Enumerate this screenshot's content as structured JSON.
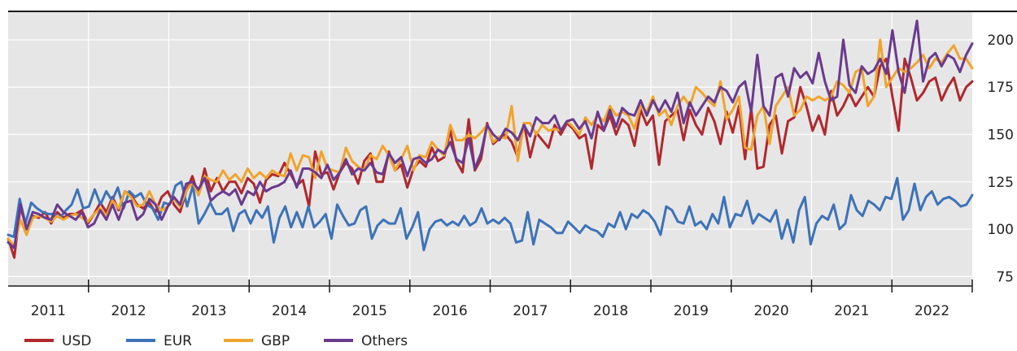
{
  "chart_data": {
    "type": "line",
    "title": "",
    "xlabel": "",
    "ylabel": "",
    "x_start": "2011-01",
    "x_frequency": "monthly",
    "years": [
      "2011",
      "2012",
      "2013",
      "2014",
      "2015",
      "2016",
      "2017",
      "2018",
      "2019",
      "2020",
      "2021",
      "2022"
    ],
    "ylim": [
      70,
      215
    ],
    "yticks": [
      75,
      100,
      125,
      150,
      175,
      200
    ],
    "grid": true,
    "legend_position": "bottom-left",
    "series": [
      {
        "name": "USD",
        "color": "#b0282e",
        "values": [
          95,
          85,
          112,
          100,
          107,
          106,
          109,
          103,
          109,
          106,
          108,
          108,
          110,
          103,
          108,
          114,
          109,
          117,
          110,
          120,
          118,
          113,
          111,
          114,
          109,
          117,
          120,
          113,
          109,
          120,
          128,
          118,
          132,
          120,
          127,
          120,
          125,
          125,
          119,
          127,
          124,
          114,
          126,
          129,
          128,
          135,
          129,
          123,
          126,
          112,
          141,
          129,
          130,
          121,
          130,
          135,
          132,
          124,
          136,
          140,
          125,
          125,
          141,
          131,
          134,
          122,
          132,
          136,
          133,
          143,
          136,
          138,
          152,
          136,
          130,
          158,
          131,
          137,
          156,
          145,
          148,
          150,
          146,
          138,
          156,
          138,
          151,
          147,
          143,
          155,
          150,
          156,
          153,
          148,
          150,
          132,
          155,
          152,
          160,
          150,
          158,
          155,
          144,
          163,
          155,
          160,
          134,
          157,
          160,
          163,
          147,
          163,
          155,
          150,
          164,
          157,
          145,
          162,
          151,
          165,
          137,
          164,
          132,
          133,
          155,
          160,
          140,
          157,
          159,
          175,
          165,
          152,
          160,
          150,
          173,
          160,
          165,
          172,
          165,
          170,
          175,
          170,
          186,
          190,
          170,
          152,
          190,
          180,
          168,
          172,
          178,
          180,
          168,
          175,
          180,
          168,
          175,
          178
        ]
      },
      {
        "name": "EUR",
        "color": "#3d72b8",
        "values": [
          97,
          96,
          116,
          103,
          114,
          111,
          109,
          108,
          108,
          106,
          110,
          113,
          121,
          111,
          112,
          121,
          113,
          120,
          115,
          122,
          111,
          120,
          117,
          119,
          113,
          111,
          105,
          114,
          113,
          123,
          125,
          112,
          123,
          103,
          108,
          114,
          108,
          108,
          111,
          99,
          108,
          110,
          103,
          110,
          106,
          112,
          93,
          106,
          112,
          101,
          109,
          101,
          112,
          101,
          104,
          108,
          95,
          113,
          107,
          102,
          103,
          110,
          112,
          95,
          102,
          105,
          103,
          103,
          111,
          95,
          101,
          109,
          89,
          100,
          104,
          105,
          102,
          104,
          102,
          107,
          102,
          104,
          111,
          103,
          105,
          103,
          106,
          103,
          93,
          94,
          109,
          92,
          105,
          103,
          101,
          98,
          98,
          104,
          101,
          98,
          102,
          100,
          99,
          96,
          103,
          101,
          109,
          100,
          108,
          106,
          110,
          108,
          104,
          97,
          112,
          110,
          104,
          103,
          112,
          102,
          104,
          100,
          108,
          103,
          117,
          101,
          108,
          107,
          115,
          103,
          108,
          106,
          104,
          110,
          95,
          105,
          93,
          110,
          117,
          92,
          103,
          107,
          105,
          113,
          100,
          103,
          118,
          110,
          107,
          115,
          113,
          110,
          117,
          116,
          127,
          105,
          110,
          124,
          110,
          117,
          120,
          113,
          116,
          117,
          115,
          112,
          113,
          118
        ]
      },
      {
        "name": "GBP",
        "color": "#f0a42c",
        "values": [
          95,
          91,
          105,
          97,
          106,
          107,
          106,
          104,
          107,
          105,
          107,
          108,
          106,
          104,
          108,
          111,
          107,
          115,
          111,
          120,
          117,
          112,
          113,
          120,
          113,
          110,
          112,
          116,
          112,
          120,
          125,
          118,
          128,
          126,
          125,
          131,
          126,
          129,
          125,
          132,
          127,
          130,
          127,
          131,
          129,
          128,
          140,
          131,
          139,
          138,
          127,
          141,
          132,
          131,
          130,
          143,
          136,
          133,
          131,
          139,
          137,
          144,
          139,
          131,
          137,
          144,
          131,
          139,
          138,
          146,
          142,
          139,
          155,
          147,
          147,
          150,
          148,
          151,
          155,
          146,
          149,
          148,
          165,
          136,
          156,
          156,
          150,
          155,
          152,
          153,
          152,
          157,
          154,
          150,
          159,
          155,
          160,
          157,
          165,
          160,
          162,
          160,
          153,
          165,
          162,
          170,
          160,
          163,
          155,
          165,
          170,
          165,
          175,
          172,
          168,
          165,
          178,
          158,
          163,
          170,
          143,
          142,
          160,
          165,
          145,
          165,
          170,
          175,
          160,
          163,
          170,
          168,
          170,
          168,
          170,
          178,
          176,
          172,
          183,
          185,
          165,
          170,
          200,
          175,
          180,
          185,
          183,
          185,
          188,
          192,
          185,
          190,
          188,
          193,
          197,
          190,
          190,
          185
        ]
      },
      {
        "name": "Others",
        "color": "#6a3a8e",
        "values": [
          93,
          90,
          113,
          100,
          109,
          108,
          106,
          105,
          113,
          109,
          107,
          105,
          109,
          101,
          103,
          110,
          105,
          113,
          105,
          114,
          115,
          105,
          108,
          116,
          113,
          105,
          112,
          117,
          113,
          124,
          125,
          121,
          127,
          115,
          118,
          120,
          118,
          121,
          113,
          120,
          118,
          125,
          120,
          122,
          123,
          125,
          131,
          122,
          132,
          132,
          130,
          127,
          134,
          126,
          130,
          137,
          129,
          132,
          131,
          135,
          130,
          129,
          140,
          135,
          138,
          128,
          137,
          138,
          135,
          137,
          142,
          140,
          146,
          137,
          135,
          148,
          132,
          140,
          155,
          150,
          147,
          153,
          151,
          147,
          155,
          149,
          159,
          156,
          156,
          160,
          152,
          157,
          158,
          153,
          157,
          148,
          162,
          152,
          163,
          154,
          164,
          161,
          160,
          168,
          160,
          168,
          162,
          168,
          162,
          172,
          156,
          167,
          160,
          165,
          170,
          167,
          175,
          173,
          167,
          175,
          178,
          162,
          192,
          165,
          160,
          180,
          182,
          170,
          185,
          180,
          183,
          177,
          193,
          178,
          168,
          170,
          200,
          176,
          172,
          186,
          182,
          184,
          190,
          182,
          205,
          183,
          172,
          192,
          210,
          178,
          190,
          193,
          186,
          192,
          190,
          183,
          192,
          198
        ]
      }
    ]
  }
}
